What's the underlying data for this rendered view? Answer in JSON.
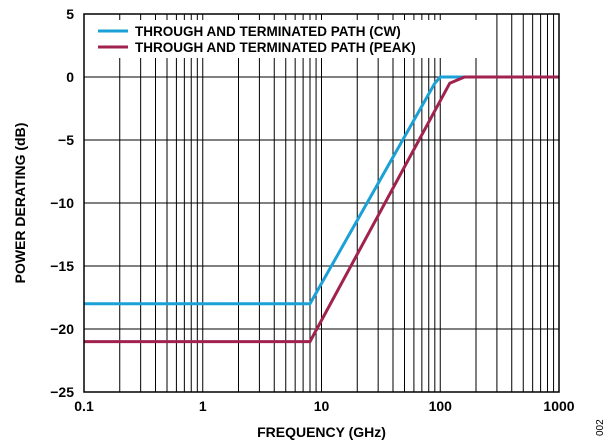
{
  "chart_data": {
    "type": "line",
    "title": "",
    "xlabel": "FREQUENCY (GHz)",
    "ylabel": "POWER DERATING (dB)",
    "xscale": "log",
    "xlim": [
      0.1,
      1000
    ],
    "ylim": [
      -25,
      5
    ],
    "x_ticks": [
      0.1,
      1,
      10,
      100,
      1000
    ],
    "x_tick_labels": [
      "0.1",
      "1",
      "10",
      "100",
      "1000"
    ],
    "y_ticks": [
      5,
      0,
      -5,
      -10,
      -15,
      -20,
      -25
    ],
    "y_tick_labels": [
      "5",
      "0",
      "−5",
      "−10",
      "−15",
      "−20",
      "−25"
    ],
    "grid": true,
    "legend_position": "top-left",
    "series": [
      {
        "name": "THROUGH AND TERMINATED PATH (CW)",
        "color": "#1ba1d6",
        "x": [
          0.1,
          8,
          90,
          100,
          1000
        ],
        "y": [
          -18,
          -18,
          -0.5,
          0,
          0
        ]
      },
      {
        "name": "THROUGH AND TERMINATED PATH (PEAK)",
        "color": "#a0224f",
        "x": [
          0.1,
          8,
          120,
          160,
          1000
        ],
        "y": [
          -21,
          -21,
          -0.5,
          0,
          0
        ]
      }
    ]
  },
  "figure_code": "002"
}
